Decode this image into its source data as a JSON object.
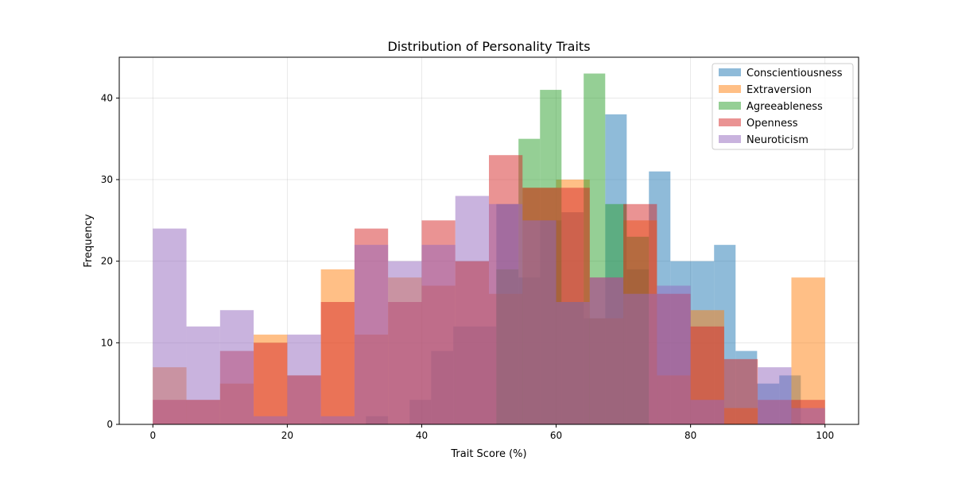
{
  "chart_data": {
    "type": "histogram",
    "title": "Distribution of Personality Traits",
    "xlabel": "Trait Score (%)",
    "ylabel": "Frequency",
    "xlim": [
      -5,
      105
    ],
    "ylim": [
      0,
      45
    ],
    "xticks": [
      0,
      20,
      40,
      60,
      80,
      100
    ],
    "yticks": [
      0,
      10,
      20,
      30,
      40
    ],
    "grid": true,
    "legend_position": "top-right",
    "bar_opacity": 0.5,
    "series": [
      {
        "name": "Conscientiousness",
        "color": "#1f77b4",
        "bins": [
          [
            22.0,
            25.2,
            0
          ],
          [
            25.2,
            28.5,
            0
          ],
          [
            28.5,
            31.7,
            0
          ],
          [
            31.7,
            35.0,
            1
          ],
          [
            35.0,
            38.2,
            0
          ],
          [
            38.2,
            41.4,
            3
          ],
          [
            41.4,
            44.7,
            9
          ],
          [
            44.7,
            47.9,
            12
          ],
          [
            47.9,
            51.1,
            12
          ],
          [
            51.1,
            54.4,
            27
          ],
          [
            54.4,
            57.6,
            18
          ],
          [
            57.6,
            60.8,
            25
          ],
          [
            60.8,
            64.1,
            26
          ],
          [
            64.1,
            67.3,
            13
          ],
          [
            67.3,
            70.5,
            38
          ],
          [
            70.5,
            73.8,
            19
          ],
          [
            73.8,
            77.0,
            31
          ],
          [
            77.0,
            80.2,
            20
          ],
          [
            80.2,
            83.5,
            20
          ],
          [
            83.5,
            86.7,
            22
          ],
          [
            86.7,
            89.9,
            9
          ],
          [
            89.9,
            93.2,
            5
          ],
          [
            93.2,
            96.4,
            6
          ]
        ]
      },
      {
        "name": "Extraversion",
        "color": "#ff7f0e",
        "bins": [
          [
            0,
            5,
            7
          ],
          [
            5,
            10,
            3
          ],
          [
            10,
            15,
            5
          ],
          [
            15,
            20,
            11
          ],
          [
            20,
            25,
            6
          ],
          [
            25,
            30,
            19
          ],
          [
            30,
            35,
            11
          ],
          [
            35,
            40,
            18
          ],
          [
            40,
            45,
            17
          ],
          [
            45,
            50,
            20
          ],
          [
            50,
            55,
            16
          ],
          [
            55,
            60,
            29
          ],
          [
            60,
            65,
            30
          ],
          [
            65,
            70,
            13
          ],
          [
            70,
            75,
            25
          ],
          [
            75,
            80,
            6
          ],
          [
            80,
            85,
            14
          ],
          [
            85,
            90,
            2
          ],
          [
            90,
            95,
            0
          ],
          [
            95,
            100,
            18
          ]
        ]
      },
      {
        "name": "Agreeableness",
        "color": "#2ca02c",
        "bins": [
          [
            22.0,
            25.2,
            0
          ],
          [
            25.2,
            28.5,
            0
          ],
          [
            28.5,
            31.7,
            0
          ],
          [
            31.7,
            35.0,
            0
          ],
          [
            35.0,
            38.2,
            0
          ],
          [
            38.2,
            41.4,
            0
          ],
          [
            41.4,
            44.7,
            0
          ],
          [
            44.7,
            47.9,
            0
          ],
          [
            47.9,
            51.1,
            0
          ],
          [
            51.1,
            54.4,
            19
          ],
          [
            54.4,
            57.6,
            35
          ],
          [
            57.6,
            60.8,
            41
          ],
          [
            60.8,
            64.1,
            15
          ],
          [
            64.1,
            67.3,
            43
          ],
          [
            67.3,
            70.5,
            27
          ],
          [
            70.5,
            73.8,
            23
          ],
          [
            73.8,
            77.0,
            0
          ],
          [
            77.0,
            80.2,
            0
          ],
          [
            80.2,
            83.5,
            0
          ]
        ]
      },
      {
        "name": "Openness",
        "color": "#d62728",
        "bins": [
          [
            0,
            5,
            3
          ],
          [
            5,
            10,
            3
          ],
          [
            10,
            15,
            9
          ],
          [
            15,
            20,
            10
          ],
          [
            20,
            25,
            6
          ],
          [
            25,
            30,
            15
          ],
          [
            30,
            35,
            24
          ],
          [
            35,
            40,
            15
          ],
          [
            40,
            45,
            25
          ],
          [
            45,
            50,
            20
          ],
          [
            50,
            55,
            33
          ],
          [
            55,
            60,
            29
          ],
          [
            60,
            65,
            29
          ],
          [
            65,
            70,
            18
          ],
          [
            70,
            75,
            27
          ],
          [
            75,
            80,
            16
          ],
          [
            80,
            85,
            12
          ],
          [
            85,
            90,
            8
          ],
          [
            90,
            95,
            3
          ],
          [
            95,
            100,
            3
          ]
        ]
      },
      {
        "name": "Neuroticism",
        "color": "#9467bd",
        "bins": [
          [
            0,
            5,
            24
          ],
          [
            5,
            10,
            12
          ],
          [
            10,
            15,
            14
          ],
          [
            15,
            20,
            1
          ],
          [
            20,
            25,
            11
          ],
          [
            25,
            30,
            1
          ],
          [
            30,
            35,
            22
          ],
          [
            35,
            40,
            20
          ],
          [
            40,
            45,
            22
          ],
          [
            45,
            50,
            28
          ],
          [
            50,
            55,
            27
          ],
          [
            55,
            60,
            25
          ],
          [
            60,
            65,
            15
          ],
          [
            65,
            70,
            18
          ],
          [
            70,
            75,
            16
          ],
          [
            75,
            80,
            17
          ],
          [
            80,
            85,
            3
          ],
          [
            85,
            90,
            0
          ],
          [
            90,
            95,
            7
          ],
          [
            95,
            100,
            2
          ]
        ]
      }
    ]
  }
}
